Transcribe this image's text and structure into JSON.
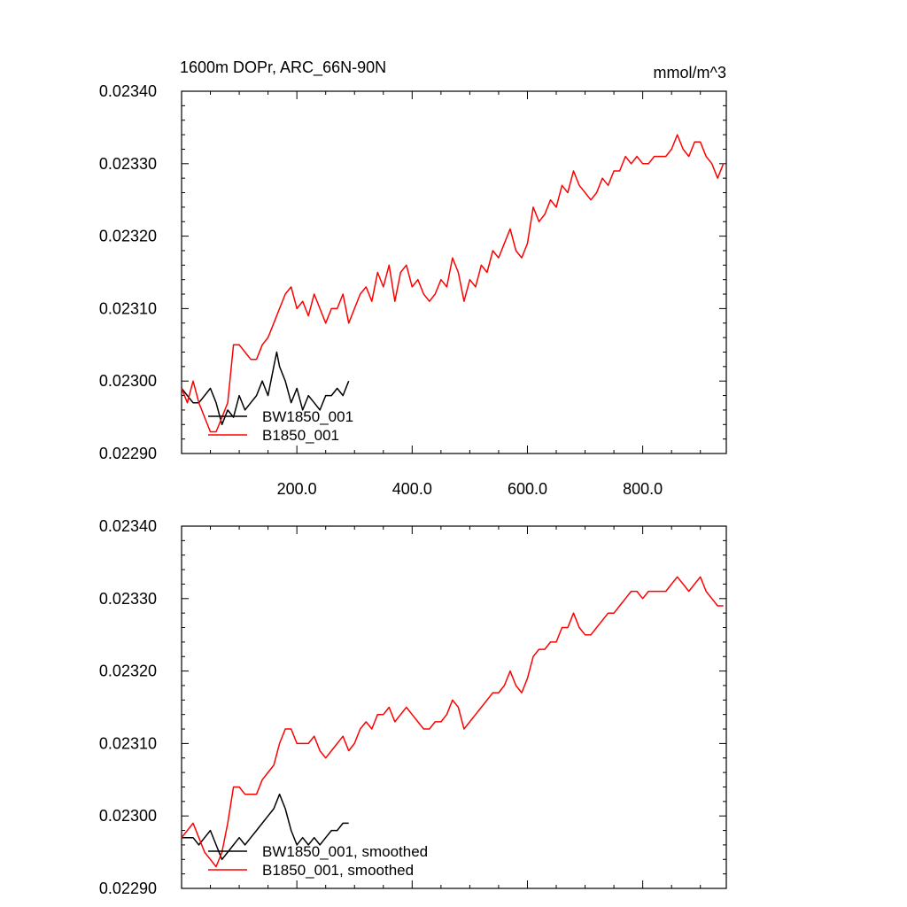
{
  "figure": {
    "title_left": "1600m DOPr, ARC_66N-90N",
    "title_right": "mmol/m^3"
  },
  "chart_data": [
    {
      "type": "line",
      "title": "1600m DOPr, ARC_66N-90N",
      "units": "mmol/m^3",
      "xlim": [
        0,
        945
      ],
      "ylim": [
        0.0229,
        0.0234
      ],
      "y_ticks": [
        "0.02340",
        "0.02330",
        "0.02320",
        "0.02310",
        "0.02300",
        "0.02290"
      ],
      "x_ticks": [
        "200.0",
        "400.0",
        "600.0",
        "800.0"
      ],
      "legend_position": "bottom-left",
      "series": [
        {
          "name": "BW1850_001",
          "color": "#000000",
          "x": [
            0,
            10,
            20,
            30,
            40,
            50,
            60,
            70,
            80,
            90,
            100,
            110,
            120,
            130,
            140,
            150,
            160,
            165,
            170,
            180,
            190,
            200,
            210,
            220,
            230,
            240,
            250,
            260,
            270,
            280,
            290
          ],
          "y": [
            0.02299,
            0.02298,
            0.02297,
            0.02297,
            0.02298,
            0.02299,
            0.02297,
            0.02294,
            0.02296,
            0.02295,
            0.02298,
            0.02296,
            0.02297,
            0.02298,
            0.023,
            0.02298,
            0.02302,
            0.02304,
            0.02302,
            0.023,
            0.02297,
            0.02299,
            0.02296,
            0.02298,
            0.02297,
            0.02296,
            0.02298,
            0.02298,
            0.02299,
            0.02298,
            0.023
          ]
        },
        {
          "name": "B1850_001",
          "color": "#ff0000",
          "x": [
            0,
            10,
            20,
            30,
            40,
            50,
            60,
            70,
            80,
            90,
            100,
            110,
            120,
            130,
            140,
            150,
            160,
            170,
            180,
            190,
            200,
            210,
            220,
            230,
            240,
            250,
            260,
            270,
            280,
            290,
            300,
            310,
            320,
            330,
            340,
            350,
            360,
            370,
            380,
            390,
            400,
            410,
            420,
            430,
            440,
            450,
            460,
            470,
            480,
            490,
            500,
            510,
            520,
            530,
            540,
            550,
            560,
            570,
            580,
            590,
            600,
            610,
            620,
            630,
            640,
            650,
            660,
            670,
            680,
            690,
            700,
            710,
            720,
            730,
            740,
            750,
            760,
            770,
            780,
            790,
            800,
            810,
            820,
            830,
            840,
            850,
            860,
            870,
            880,
            890,
            900,
            910,
            920,
            930,
            940
          ],
          "y": [
            0.02299,
            0.02297,
            0.023,
            0.02297,
            0.02295,
            0.02293,
            0.02293,
            0.02295,
            0.02297,
            0.02305,
            0.02305,
            0.02304,
            0.02303,
            0.02303,
            0.02305,
            0.02306,
            0.02308,
            0.0231,
            0.02312,
            0.02313,
            0.0231,
            0.02311,
            0.02309,
            0.02312,
            0.0231,
            0.02308,
            0.0231,
            0.0231,
            0.02312,
            0.02308,
            0.0231,
            0.02312,
            0.02313,
            0.02311,
            0.02315,
            0.02313,
            0.02316,
            0.02311,
            0.02315,
            0.02316,
            0.02313,
            0.02314,
            0.02312,
            0.02311,
            0.02312,
            0.02314,
            0.02313,
            0.02317,
            0.02315,
            0.02311,
            0.02314,
            0.02313,
            0.02316,
            0.02315,
            0.02318,
            0.02317,
            0.02319,
            0.02321,
            0.02318,
            0.02317,
            0.02319,
            0.02324,
            0.02322,
            0.02323,
            0.02325,
            0.02324,
            0.02327,
            0.02326,
            0.02329,
            0.02327,
            0.02326,
            0.02325,
            0.02326,
            0.02328,
            0.02327,
            0.02329,
            0.02329,
            0.02331,
            0.0233,
            0.02331,
            0.0233,
            0.0233,
            0.02331,
            0.02331,
            0.02331,
            0.02332,
            0.02334,
            0.02332,
            0.02331,
            0.02333,
            0.02333,
            0.02331,
            0.0233,
            0.02328,
            0.0233
          ]
        }
      ]
    },
    {
      "type": "line",
      "title": "",
      "xlim": [
        0,
        945
      ],
      "ylim": [
        0.0229,
        0.0234
      ],
      "y_ticks": [
        "0.02340",
        "0.02330",
        "0.02320",
        "0.02310",
        "0.02300",
        "0.02290"
      ],
      "x_ticks": [],
      "legend_position": "bottom-left",
      "series": [
        {
          "name": "BW1850_001, smoothed",
          "color": "#000000",
          "x": [
            0,
            10,
            20,
            30,
            40,
            50,
            60,
            70,
            80,
            90,
            100,
            110,
            120,
            130,
            140,
            150,
            160,
            170,
            180,
            190,
            200,
            210,
            220,
            230,
            240,
            250,
            260,
            270,
            280,
            290
          ],
          "y": [
            0.02297,
            0.02297,
            0.02297,
            0.02296,
            0.02297,
            0.02298,
            0.02296,
            0.02294,
            0.02295,
            0.02296,
            0.02297,
            0.02296,
            0.02297,
            0.02298,
            0.02299,
            0.023,
            0.02301,
            0.02303,
            0.02301,
            0.02298,
            0.02296,
            0.02297,
            0.02296,
            0.02297,
            0.02296,
            0.02297,
            0.02298,
            0.02298,
            0.02299,
            0.02299
          ]
        },
        {
          "name": "B1850_001, smoothed",
          "color": "#ff0000",
          "x": [
            0,
            10,
            20,
            30,
            40,
            50,
            60,
            70,
            80,
            90,
            100,
            110,
            120,
            130,
            140,
            150,
            160,
            170,
            180,
            190,
            200,
            210,
            220,
            230,
            240,
            250,
            260,
            270,
            280,
            290,
            300,
            310,
            320,
            330,
            340,
            350,
            360,
            370,
            380,
            390,
            400,
            410,
            420,
            430,
            440,
            450,
            460,
            470,
            480,
            490,
            500,
            510,
            520,
            530,
            540,
            550,
            560,
            570,
            580,
            590,
            600,
            610,
            620,
            630,
            640,
            650,
            660,
            670,
            680,
            690,
            700,
            710,
            720,
            730,
            740,
            750,
            760,
            770,
            780,
            790,
            800,
            810,
            820,
            830,
            840,
            850,
            860,
            870,
            880,
            890,
            900,
            910,
            920,
            930,
            940
          ],
          "y": [
            0.02297,
            0.02298,
            0.02299,
            0.02297,
            0.02295,
            0.02294,
            0.02293,
            0.02295,
            0.02299,
            0.02304,
            0.02304,
            0.02303,
            0.02303,
            0.02303,
            0.02305,
            0.02306,
            0.02307,
            0.0231,
            0.02312,
            0.02312,
            0.0231,
            0.0231,
            0.0231,
            0.02311,
            0.02309,
            0.02308,
            0.02309,
            0.0231,
            0.02311,
            0.02309,
            0.0231,
            0.02312,
            0.02313,
            0.02312,
            0.02314,
            0.02314,
            0.02315,
            0.02313,
            0.02314,
            0.02315,
            0.02314,
            0.02313,
            0.02312,
            0.02312,
            0.02313,
            0.02313,
            0.02314,
            0.02316,
            0.02315,
            0.02312,
            0.02313,
            0.02314,
            0.02315,
            0.02316,
            0.02317,
            0.02317,
            0.02318,
            0.0232,
            0.02318,
            0.02317,
            0.02319,
            0.02322,
            0.02323,
            0.02323,
            0.02324,
            0.02324,
            0.02326,
            0.02326,
            0.02328,
            0.02326,
            0.02325,
            0.02325,
            0.02326,
            0.02327,
            0.02328,
            0.02328,
            0.02329,
            0.0233,
            0.02331,
            0.02331,
            0.0233,
            0.02331,
            0.02331,
            0.02331,
            0.02331,
            0.02332,
            0.02333,
            0.02332,
            0.02331,
            0.02332,
            0.02333,
            0.02331,
            0.0233,
            0.02329,
            0.02329
          ]
        }
      ]
    }
  ]
}
